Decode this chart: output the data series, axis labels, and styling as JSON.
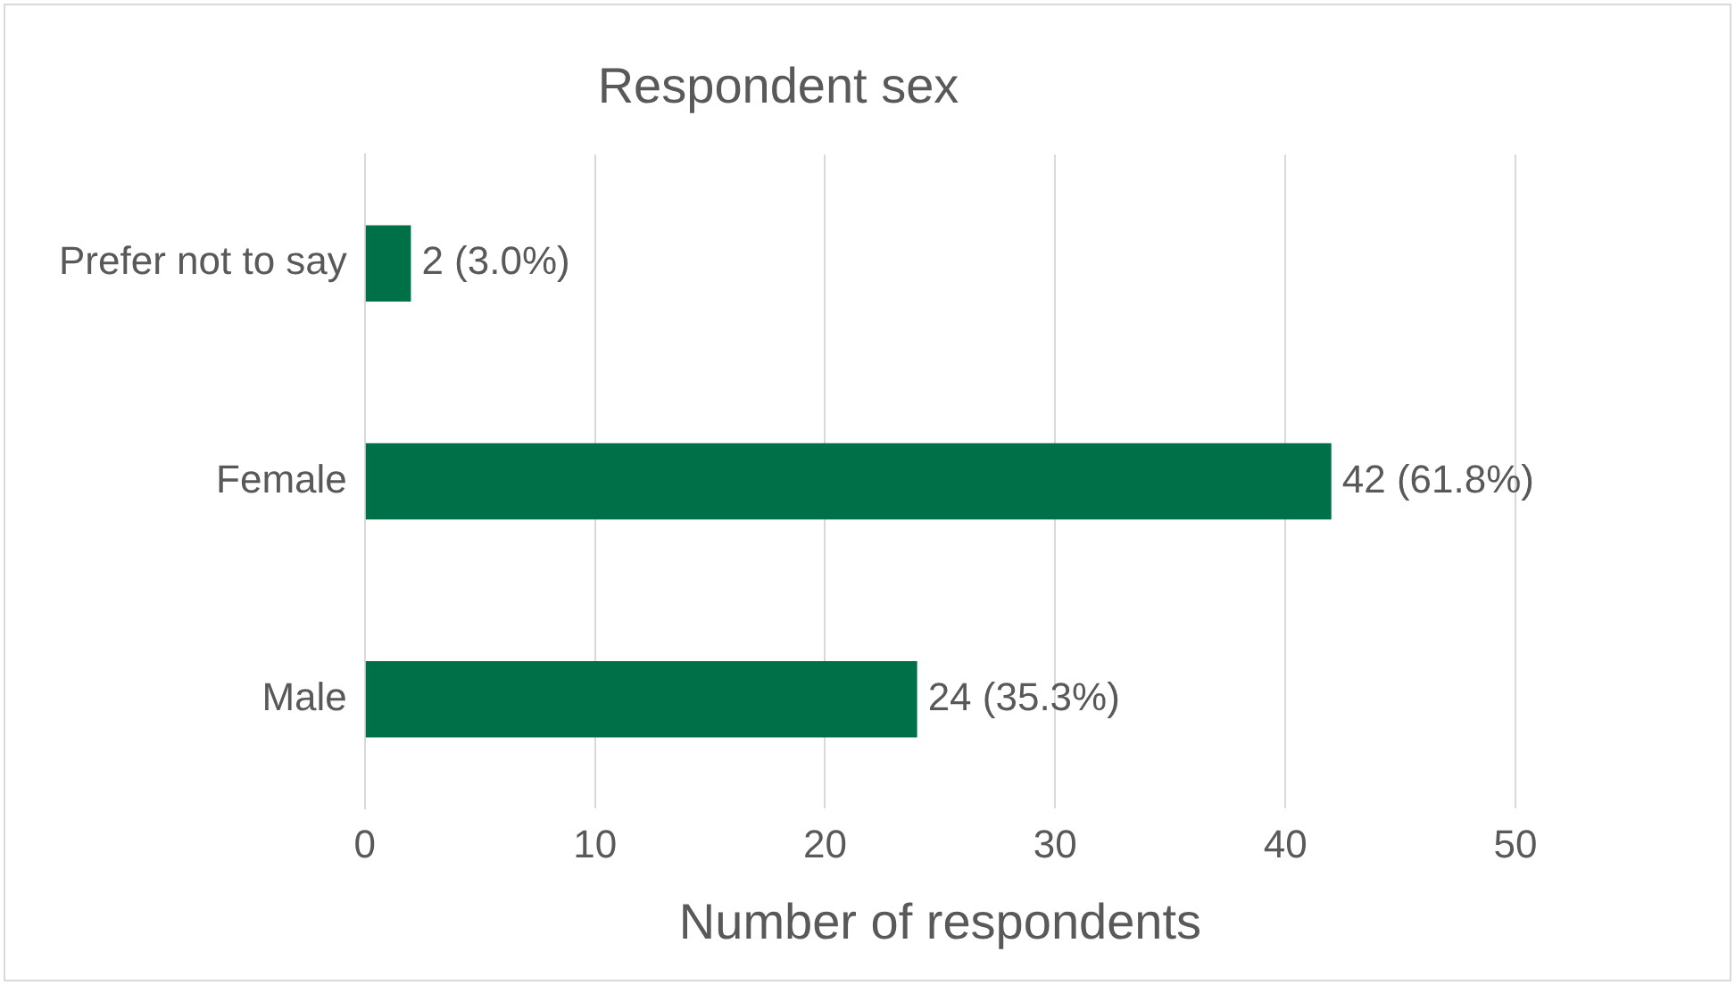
{
  "chart_data": {
    "type": "bar",
    "orientation": "horizontal",
    "title": "Respondent sex",
    "xlabel": "Number of respondents",
    "categories": [
      "Prefer not to say",
      "Female",
      "Male"
    ],
    "values": [
      2,
      42,
      24
    ],
    "value_labels": [
      "2 (3.0%)",
      "42 (61.8%)",
      "24 (35.3%)"
    ],
    "color": "#007049",
    "xlim": [
      0,
      50
    ],
    "xticks": [
      0,
      10,
      20,
      30,
      40,
      50
    ],
    "grid": "x",
    "legend": false
  }
}
